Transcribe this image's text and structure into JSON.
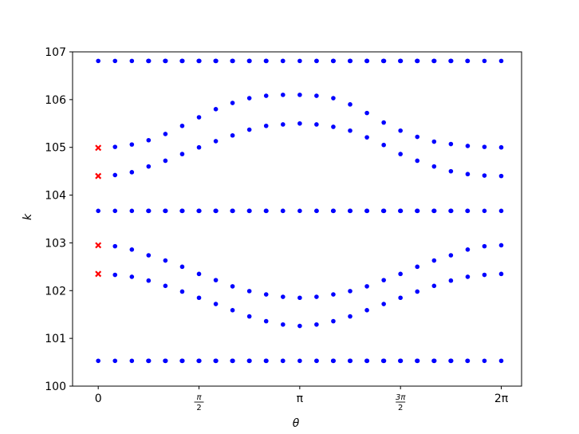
{
  "chart_data": {
    "type": "scatter",
    "title": "",
    "xlabel": "θ",
    "ylabel": "k",
    "xlim": [
      -0.4,
      6.6
    ],
    "ylim": [
      100,
      107
    ],
    "grid": false,
    "legend": "none",
    "x_ticks": [
      {
        "value": 0,
        "label": "0"
      },
      {
        "value": 1.5708,
        "label": "π/2"
      },
      {
        "value": 3.1416,
        "label": "π"
      },
      {
        "value": 4.7124,
        "label": "3π/2"
      },
      {
        "value": 6.2832,
        "label": "2π"
      }
    ],
    "y_ticks": [
      {
        "value": 100,
        "label": "100"
      },
      {
        "value": 101,
        "label": "101"
      },
      {
        "value": 102,
        "label": "102"
      },
      {
        "value": 103,
        "label": "103"
      },
      {
        "value": 104,
        "label": "104"
      },
      {
        "value": 105,
        "label": "105"
      },
      {
        "value": 106,
        "label": "106"
      },
      {
        "value": 107,
        "label": "107"
      }
    ],
    "flat_bands": [
      100.53,
      103.67,
      106.81
    ],
    "flat_band_x": [
      0,
      0.262,
      0.524,
      0.781,
      0.785,
      0.789,
      1.043,
      1.047,
      1.051,
      1.305,
      1.309,
      1.313,
      1.567,
      1.571,
      1.575,
      1.829,
      1.833,
      1.837,
      2.09,
      2.094,
      2.098,
      2.353,
      2.356,
      2.359,
      2.615,
      2.618,
      2.621,
      2.878,
      2.88,
      3.142,
      3.403,
      3.405,
      3.662,
      3.665,
      3.668,
      3.924,
      3.927,
      3.93,
      4.186,
      4.189,
      4.192,
      4.445,
      4.451,
      4.455,
      4.708,
      4.712,
      4.716,
      4.97,
      4.974,
      4.978,
      5.232,
      5.236,
      5.24,
      5.494,
      5.498,
      5.502,
      5.756,
      5.76,
      6.021,
      6.283
    ],
    "series": [
      {
        "color": "#0000ff",
        "marker": "dot",
        "x": [
          0.262,
          0.524,
          0.785,
          1.047,
          1.309,
          1.571,
          1.833,
          2.094,
          2.356,
          2.618,
          2.88,
          3.142,
          3.403,
          3.665,
          3.927,
          4.189,
          4.451,
          4.712,
          4.974,
          5.236,
          5.498,
          5.76,
          6.021,
          6.283
        ],
        "upper_outer": [
          105.01,
          105.06,
          105.15,
          105.28,
          105.45,
          105.63,
          105.8,
          105.93,
          106.03,
          106.08,
          106.1,
          106.1,
          106.08,
          106.03,
          105.9,
          105.72,
          105.52,
          105.35,
          105.22,
          105.12,
          105.07,
          105.03,
          105.01,
          105.0
        ],
        "upper_inner": [
          104.42,
          104.48,
          104.6,
          104.72,
          104.86,
          105.0,
          105.13,
          105.25,
          105.37,
          105.45,
          105.48,
          105.5,
          105.48,
          105.43,
          105.35,
          105.21,
          105.05,
          104.86,
          104.72,
          104.6,
          104.5,
          104.44,
          104.41,
          104.4
        ],
        "lower_inner": [
          102.93,
          102.86,
          102.74,
          102.63,
          102.5,
          102.35,
          102.22,
          102.09,
          101.99,
          101.92,
          101.87,
          101.85,
          101.87,
          101.92,
          101.99,
          102.09,
          102.22,
          102.35,
          102.5,
          102.63,
          102.74,
          102.86,
          102.93,
          102.95
        ],
        "lower_outer": [
          102.33,
          102.29,
          102.21,
          102.1,
          101.98,
          101.85,
          101.72,
          101.59,
          101.46,
          101.36,
          101.29,
          101.26,
          101.29,
          101.36,
          101.46,
          101.59,
          101.72,
          101.85,
          101.98,
          102.1,
          102.21,
          102.29,
          102.33,
          102.35
        ]
      },
      {
        "color": "#ff0000",
        "marker": "x",
        "x": [
          0,
          0,
          0,
          0
        ],
        "y": [
          104.99,
          104.4,
          102.95,
          102.35
        ]
      }
    ]
  }
}
